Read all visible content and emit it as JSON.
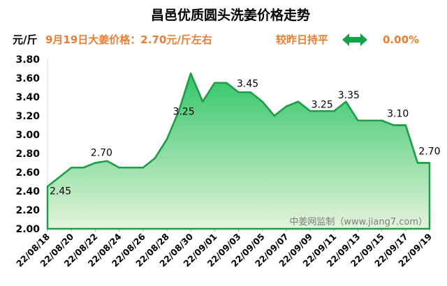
{
  "header": {
    "price_note": "9月19日大姜价格：2.70元/斤左右",
    "change_label": "较昨日持平",
    "change_icon": "double-arrow-icon",
    "change_value": "0.00%"
  },
  "watermark": "中姜网监制（www.jiang7.com）",
  "colors": {
    "accent": "#ED7D31",
    "line": "#1E9E48",
    "fill_top": "#2EC466",
    "fill_bottom": "#E4F4DA",
    "arrow": "#13A34A",
    "axis": "#A6A6A6",
    "watermark": "#7F7F7F"
  },
  "chart_data": {
    "type": "area",
    "title": "昌邑优质圆头洗姜价格走势",
    "ylabel": "元/斤",
    "ylim": [
      2.0,
      3.8
    ],
    "y_tick_labels": [
      "2.00",
      "2.20",
      "2.40",
      "2.60",
      "2.80",
      "3.00",
      "3.20",
      "3.40",
      "3.60",
      "3.80"
    ],
    "x_tick_labels": [
      "22/08/18",
      "22/08/20",
      "22/08/22",
      "22/08/24",
      "22/08/26",
      "22/08/28",
      "22/08/30",
      "22/09/01",
      "22/09/03",
      "22/09/05",
      "22/09/07",
      "22/09/09",
      "22/09/11",
      "22/09/13",
      "22/09/15",
      "22/09/17",
      "22/09/19"
    ],
    "values": [
      2.45,
      2.55,
      2.65,
      2.65,
      2.7,
      2.72,
      2.65,
      2.65,
      2.65,
      2.75,
      2.95,
      3.25,
      3.65,
      3.35,
      3.55,
      3.55,
      3.45,
      3.45,
      3.35,
      3.2,
      3.3,
      3.35,
      3.25,
      3.25,
      3.25,
      3.35,
      3.15,
      3.15,
      3.15,
      3.1,
      3.1,
      2.7,
      2.7
    ],
    "point_labels": [
      "2.45",
      "",
      "",
      "",
      "2.70",
      "",
      "",
      "",
      "",
      "",
      "",
      "3.25",
      "",
      "",
      "",
      "",
      "",
      "3.45",
      "",
      "",
      "",
      "",
      "",
      "3.25",
      "",
      "3.35",
      "",
      "",
      "",
      "3.10",
      "",
      "",
      "2.70"
    ],
    "grid": false,
    "legend": "none"
  }
}
